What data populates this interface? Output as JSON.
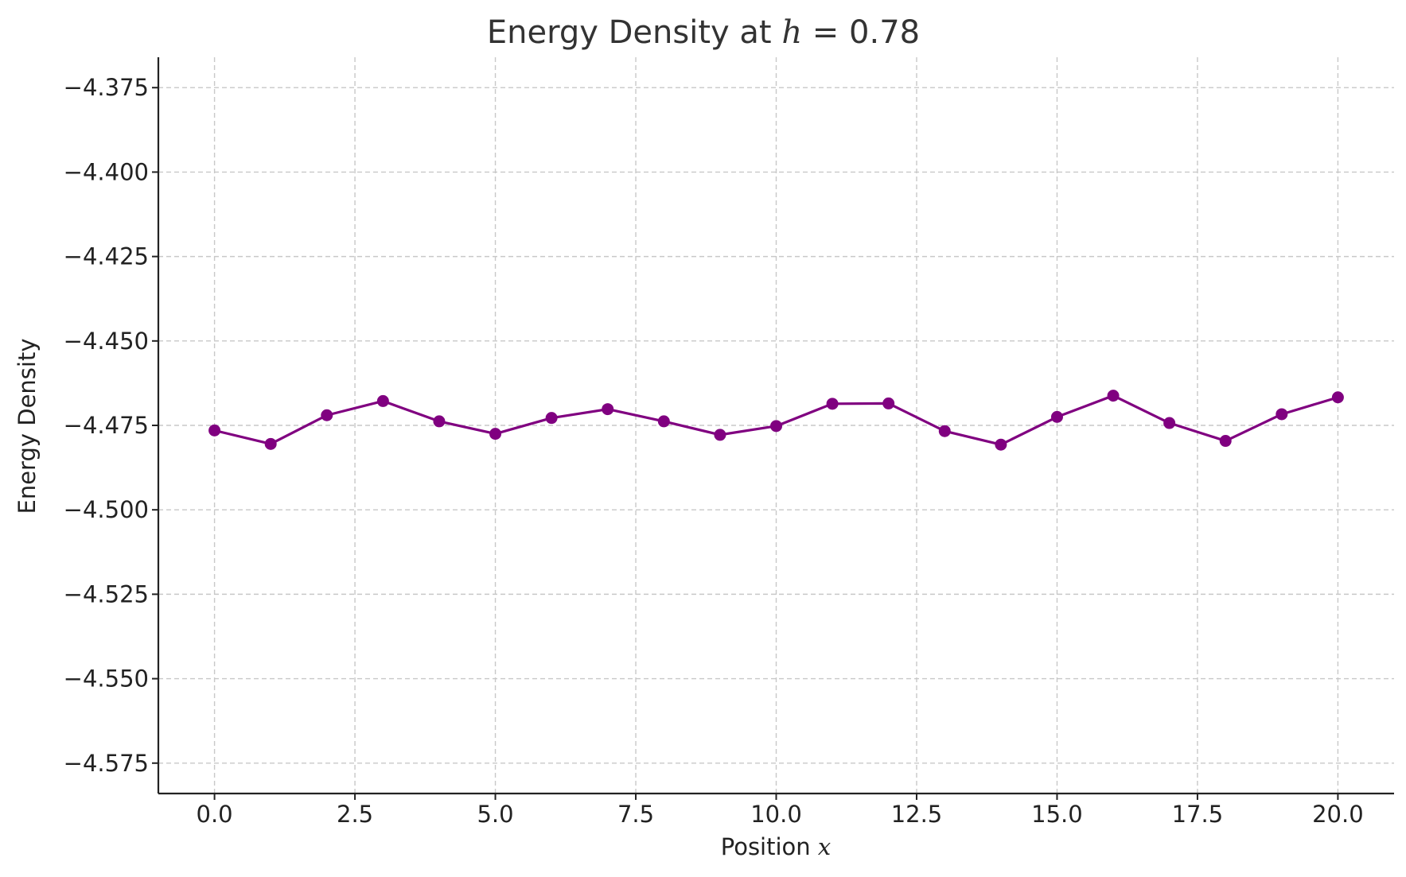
{
  "chart_data": {
    "type": "line",
    "title": "Energy Density at h = 0.78",
    "title_parts": {
      "prefix": "Energy Density at ",
      "var": "h",
      "eq": " = ",
      "value": "0.78"
    },
    "xlabel": "Position x",
    "xlabel_parts": {
      "text": "Position ",
      "var": "x"
    },
    "ylabel": "Energy Density",
    "xlim": [
      -1,
      21
    ],
    "ylim": [
      -4.584,
      -4.366
    ],
    "x_ticks": [
      0.0,
      2.5,
      5.0,
      7.5,
      10.0,
      12.5,
      15.0,
      17.5,
      20.0
    ],
    "x_tick_labels": [
      "0.0",
      "2.5",
      "5.0",
      "7.5",
      "10.0",
      "12.5",
      "15.0",
      "17.5",
      "20.0"
    ],
    "y_ticks": [
      -4.375,
      -4.4,
      -4.425,
      -4.45,
      -4.475,
      -4.5,
      -4.525,
      -4.55,
      -4.575
    ],
    "y_tick_labels": [
      "−4.375",
      "−4.400",
      "−4.425",
      "−4.450",
      "−4.475",
      "−4.500",
      "−4.525",
      "−4.550",
      "−4.575"
    ],
    "grid": true,
    "series": [
      {
        "color": "#800080",
        "marker": "circle",
        "x": [
          0,
          1,
          2,
          3,
          4,
          5,
          6,
          7,
          8,
          9,
          10,
          11,
          12,
          13,
          14,
          15,
          16,
          17,
          18,
          19,
          20
        ],
        "y": [
          -4.4765,
          -4.4805,
          -4.472,
          -4.4678,
          -4.4738,
          -4.4775,
          -4.4728,
          -4.4702,
          -4.4738,
          -4.4778,
          -4.4752,
          -4.4686,
          -4.4685,
          -4.4767,
          -4.4807,
          -4.4725,
          -4.4662,
          -4.4743,
          -4.4796,
          -4.4717,
          -4.4667
        ]
      }
    ]
  }
}
